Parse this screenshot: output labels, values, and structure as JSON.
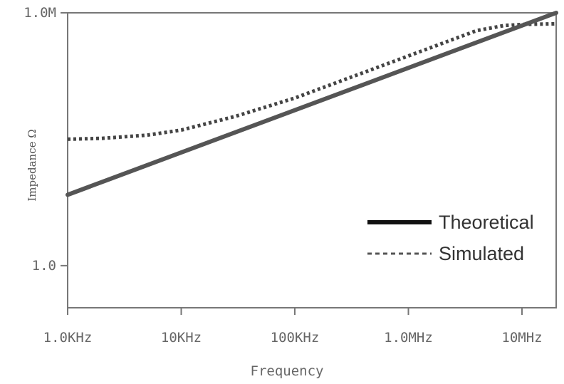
{
  "chart_data": {
    "type": "line",
    "title": "",
    "xlabel": "Frequency",
    "ylabel": "Impedance Ω",
    "x_scale": "log",
    "y_scale": "log",
    "xlim": [
      1000,
      20000000
    ],
    "ylim": [
      0.1,
      1000000
    ],
    "x_ticks": [
      {
        "value": 1000,
        "label": "1.0KHz"
      },
      {
        "value": 10000,
        "label": "10KHz"
      },
      {
        "value": 100000,
        "label": "100KHz"
      },
      {
        "value": 1000000,
        "label": "1.0MHz"
      },
      {
        "value": 10000000,
        "label": "10MHz"
      }
    ],
    "y_ticks": [
      {
        "value": 1,
        "label": "1.0"
      },
      {
        "value": 1000000,
        "label": "1.0M"
      }
    ],
    "grid": false,
    "legend_position": "bottom-right",
    "series": [
      {
        "name": "Theoretical",
        "style": "solid",
        "color": "#555555",
        "x": [
          1000,
          20000000
        ],
        "y": [
          48,
          1000000
        ]
      },
      {
        "name": "Simulated",
        "style": "dotted",
        "color": "#444444",
        "x": [
          1000,
          2000,
          5000,
          10000,
          30000,
          100000,
          1000000,
          4000000,
          7000000,
          10000000,
          20000000
        ],
        "y": [
          1000,
          1050,
          1250,
          1650,
          3500,
          9500,
          95000,
          380000,
          500000,
          530000,
          550000
        ]
      }
    ]
  }
}
